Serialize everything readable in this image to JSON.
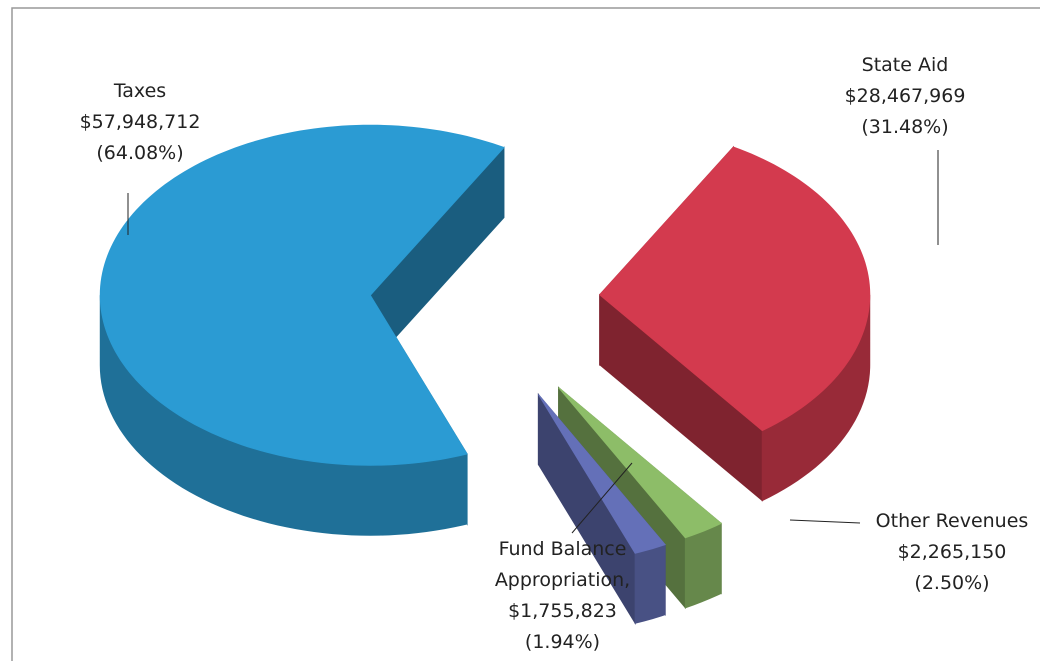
{
  "chart_data": {
    "type": "pie3d",
    "categories": [
      "Taxes",
      "State Aid",
      "Other Revenues",
      "Fund Balance Appropriation,"
    ],
    "values": [
      57948712,
      28467969,
      2265150,
      1755823
    ],
    "value_labels": [
      "$57,948,712",
      "$28,467,969",
      "$2,265,150",
      "$1,755,823"
    ],
    "percent_labels": [
      "(64.08%)",
      "(31.48%)",
      "(2.50%)",
      "(1.94%)"
    ],
    "colors": [
      "#2b9bd3",
      "#d33a4e",
      "#8dbd68",
      "#6470b8"
    ]
  }
}
